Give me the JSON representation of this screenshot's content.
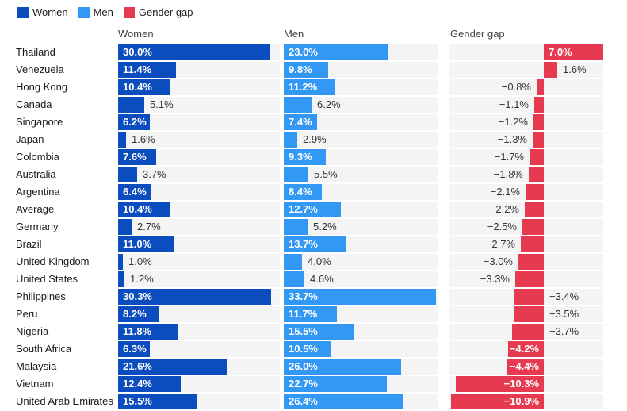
{
  "legend": {
    "items": [
      {
        "label": "Women",
        "color": "#0b4dbe"
      },
      {
        "label": "Men",
        "color": "#3398f3"
      },
      {
        "label": "Gender gap",
        "color": "#e63a50"
      }
    ]
  },
  "panels": {
    "women_header": "Women",
    "men_header": "Men",
    "gap_header": "Gender gap"
  },
  "rows": [
    {
      "country": "Thailand",
      "women": 30.0,
      "men": 23.0,
      "gap": 7.0,
      "women_label": "in",
      "men_label": "in",
      "gap_label": "in"
    },
    {
      "country": "Venezuela",
      "women": 11.4,
      "men": 9.8,
      "gap": 1.6,
      "women_label": "in",
      "men_label": "in",
      "gap_label": "out-right"
    },
    {
      "country": "Hong Kong",
      "women": 10.4,
      "men": 11.2,
      "gap": -0.8,
      "women_label": "in",
      "men_label": "in",
      "gap_label": "out-left"
    },
    {
      "country": "Canada",
      "women": 5.1,
      "men": 6.2,
      "gap": -1.1,
      "women_label": "out",
      "men_label": "out",
      "gap_label": "out-left"
    },
    {
      "country": "Singapore",
      "women": 6.2,
      "men": 7.4,
      "gap": -1.2,
      "women_label": "in",
      "men_label": "in",
      "gap_label": "out-left"
    },
    {
      "country": "Japan",
      "women": 1.6,
      "men": 2.9,
      "gap": -1.3,
      "women_label": "out",
      "men_label": "out",
      "gap_label": "out-left"
    },
    {
      "country": "Colombia",
      "women": 7.6,
      "men": 9.3,
      "gap": -1.7,
      "women_label": "in",
      "men_label": "in",
      "gap_label": "out-left"
    },
    {
      "country": "Australia",
      "women": 3.7,
      "men": 5.5,
      "gap": -1.8,
      "women_label": "out",
      "men_label": "out",
      "gap_label": "out-left"
    },
    {
      "country": "Argentina",
      "women": 6.4,
      "men": 8.4,
      "gap": -2.1,
      "women_label": "in",
      "men_label": "in",
      "gap_label": "out-left"
    },
    {
      "country": "Average",
      "women": 10.4,
      "men": 12.7,
      "gap": -2.2,
      "women_label": "in",
      "men_label": "in",
      "gap_label": "out-left"
    },
    {
      "country": "Germany",
      "women": 2.7,
      "men": 5.2,
      "gap": -2.5,
      "women_label": "out",
      "men_label": "out",
      "gap_label": "out-left"
    },
    {
      "country": "Brazil",
      "women": 11.0,
      "men": 13.7,
      "gap": -2.7,
      "women_label": "in",
      "men_label": "in",
      "gap_label": "out-left"
    },
    {
      "country": "United Kingdom",
      "women": 1.0,
      "men": 4.0,
      "gap": -3.0,
      "women_label": "out",
      "men_label": "out",
      "gap_label": "out-left"
    },
    {
      "country": "United States",
      "women": 1.2,
      "men": 4.6,
      "gap": -3.3,
      "women_label": "out",
      "men_label": "out",
      "gap_label": "out-left"
    },
    {
      "country": "Philippines",
      "women": 30.3,
      "men": 33.7,
      "gap": -3.4,
      "women_label": "in",
      "men_label": "in",
      "gap_label": "out-right"
    },
    {
      "country": "Peru",
      "women": 8.2,
      "men": 11.7,
      "gap": -3.5,
      "women_label": "in",
      "men_label": "in",
      "gap_label": "out-right"
    },
    {
      "country": "Nigeria",
      "women": 11.8,
      "men": 15.5,
      "gap": -3.7,
      "women_label": "in",
      "men_label": "in",
      "gap_label": "out-right"
    },
    {
      "country": "South Africa",
      "women": 6.3,
      "men": 10.5,
      "gap": -4.2,
      "women_label": "in",
      "men_label": "in",
      "gap_label": "in"
    },
    {
      "country": "Malaysia",
      "women": 21.6,
      "men": 26.0,
      "gap": -4.4,
      "women_label": "in",
      "men_label": "in",
      "gap_label": "in"
    },
    {
      "country": "Vietnam",
      "women": 12.4,
      "men": 22.7,
      "gap": -10.3,
      "women_label": "in",
      "men_label": "in",
      "gap_label": "in"
    },
    {
      "country": "United Arab Emirates",
      "women": 15.5,
      "men": 26.4,
      "gap": -10.9,
      "women_label": "in",
      "men_label": "in",
      "gap_label": "in"
    }
  ],
  "chart_data": {
    "type": "bar",
    "orientation": "horizontal",
    "layout": "three small-multiple panels with shared category rows, zebra row backgrounds, legend top-left",
    "value_suffix": "%",
    "categories": [
      "Thailand",
      "Venezuela",
      "Hong Kong",
      "Canada",
      "Singapore",
      "Japan",
      "Colombia",
      "Australia",
      "Argentina",
      "Average",
      "Germany",
      "Brazil",
      "United Kingdom",
      "United States",
      "Philippines",
      "Peru",
      "Nigeria",
      "South Africa",
      "Malaysia",
      "Vietnam",
      "United Arab Emirates"
    ],
    "series": [
      {
        "name": "Women",
        "color": "#0b4dbe",
        "values": [
          30.0,
          11.4,
          10.4,
          5.1,
          6.2,
          1.6,
          7.6,
          3.7,
          6.4,
          10.4,
          2.7,
          11.0,
          1.0,
          1.2,
          30.3,
          8.2,
          11.8,
          6.3,
          21.6,
          12.4,
          15.5
        ]
      },
      {
        "name": "Men",
        "color": "#3398f3",
        "values": [
          23.0,
          9.8,
          11.2,
          6.2,
          7.4,
          2.9,
          9.3,
          5.5,
          8.4,
          12.7,
          5.2,
          13.7,
          4.0,
          4.6,
          33.7,
          11.7,
          15.5,
          10.5,
          26.0,
          22.7,
          26.4
        ]
      },
      {
        "name": "Gender gap",
        "color": "#e63a50",
        "values": [
          7.0,
          1.6,
          -0.8,
          -1.1,
          -1.2,
          -1.3,
          -1.7,
          -1.8,
          -2.1,
          -2.2,
          -2.5,
          -2.7,
          -3.0,
          -3.3,
          -3.4,
          -3.5,
          -3.7,
          -4.2,
          -4.4,
          -10.3,
          -10.9
        ]
      }
    ],
    "panel_axes": [
      {
        "title": "Women",
        "axis_min": 0,
        "axis_max": 32
      },
      {
        "title": "Men",
        "axis_min": 0,
        "axis_max": 34
      },
      {
        "title": "Gender gap",
        "axis_min": -11,
        "axis_max": 7,
        "diverging": true
      }
    ],
    "grid": false,
    "legend_position": "top-left"
  }
}
